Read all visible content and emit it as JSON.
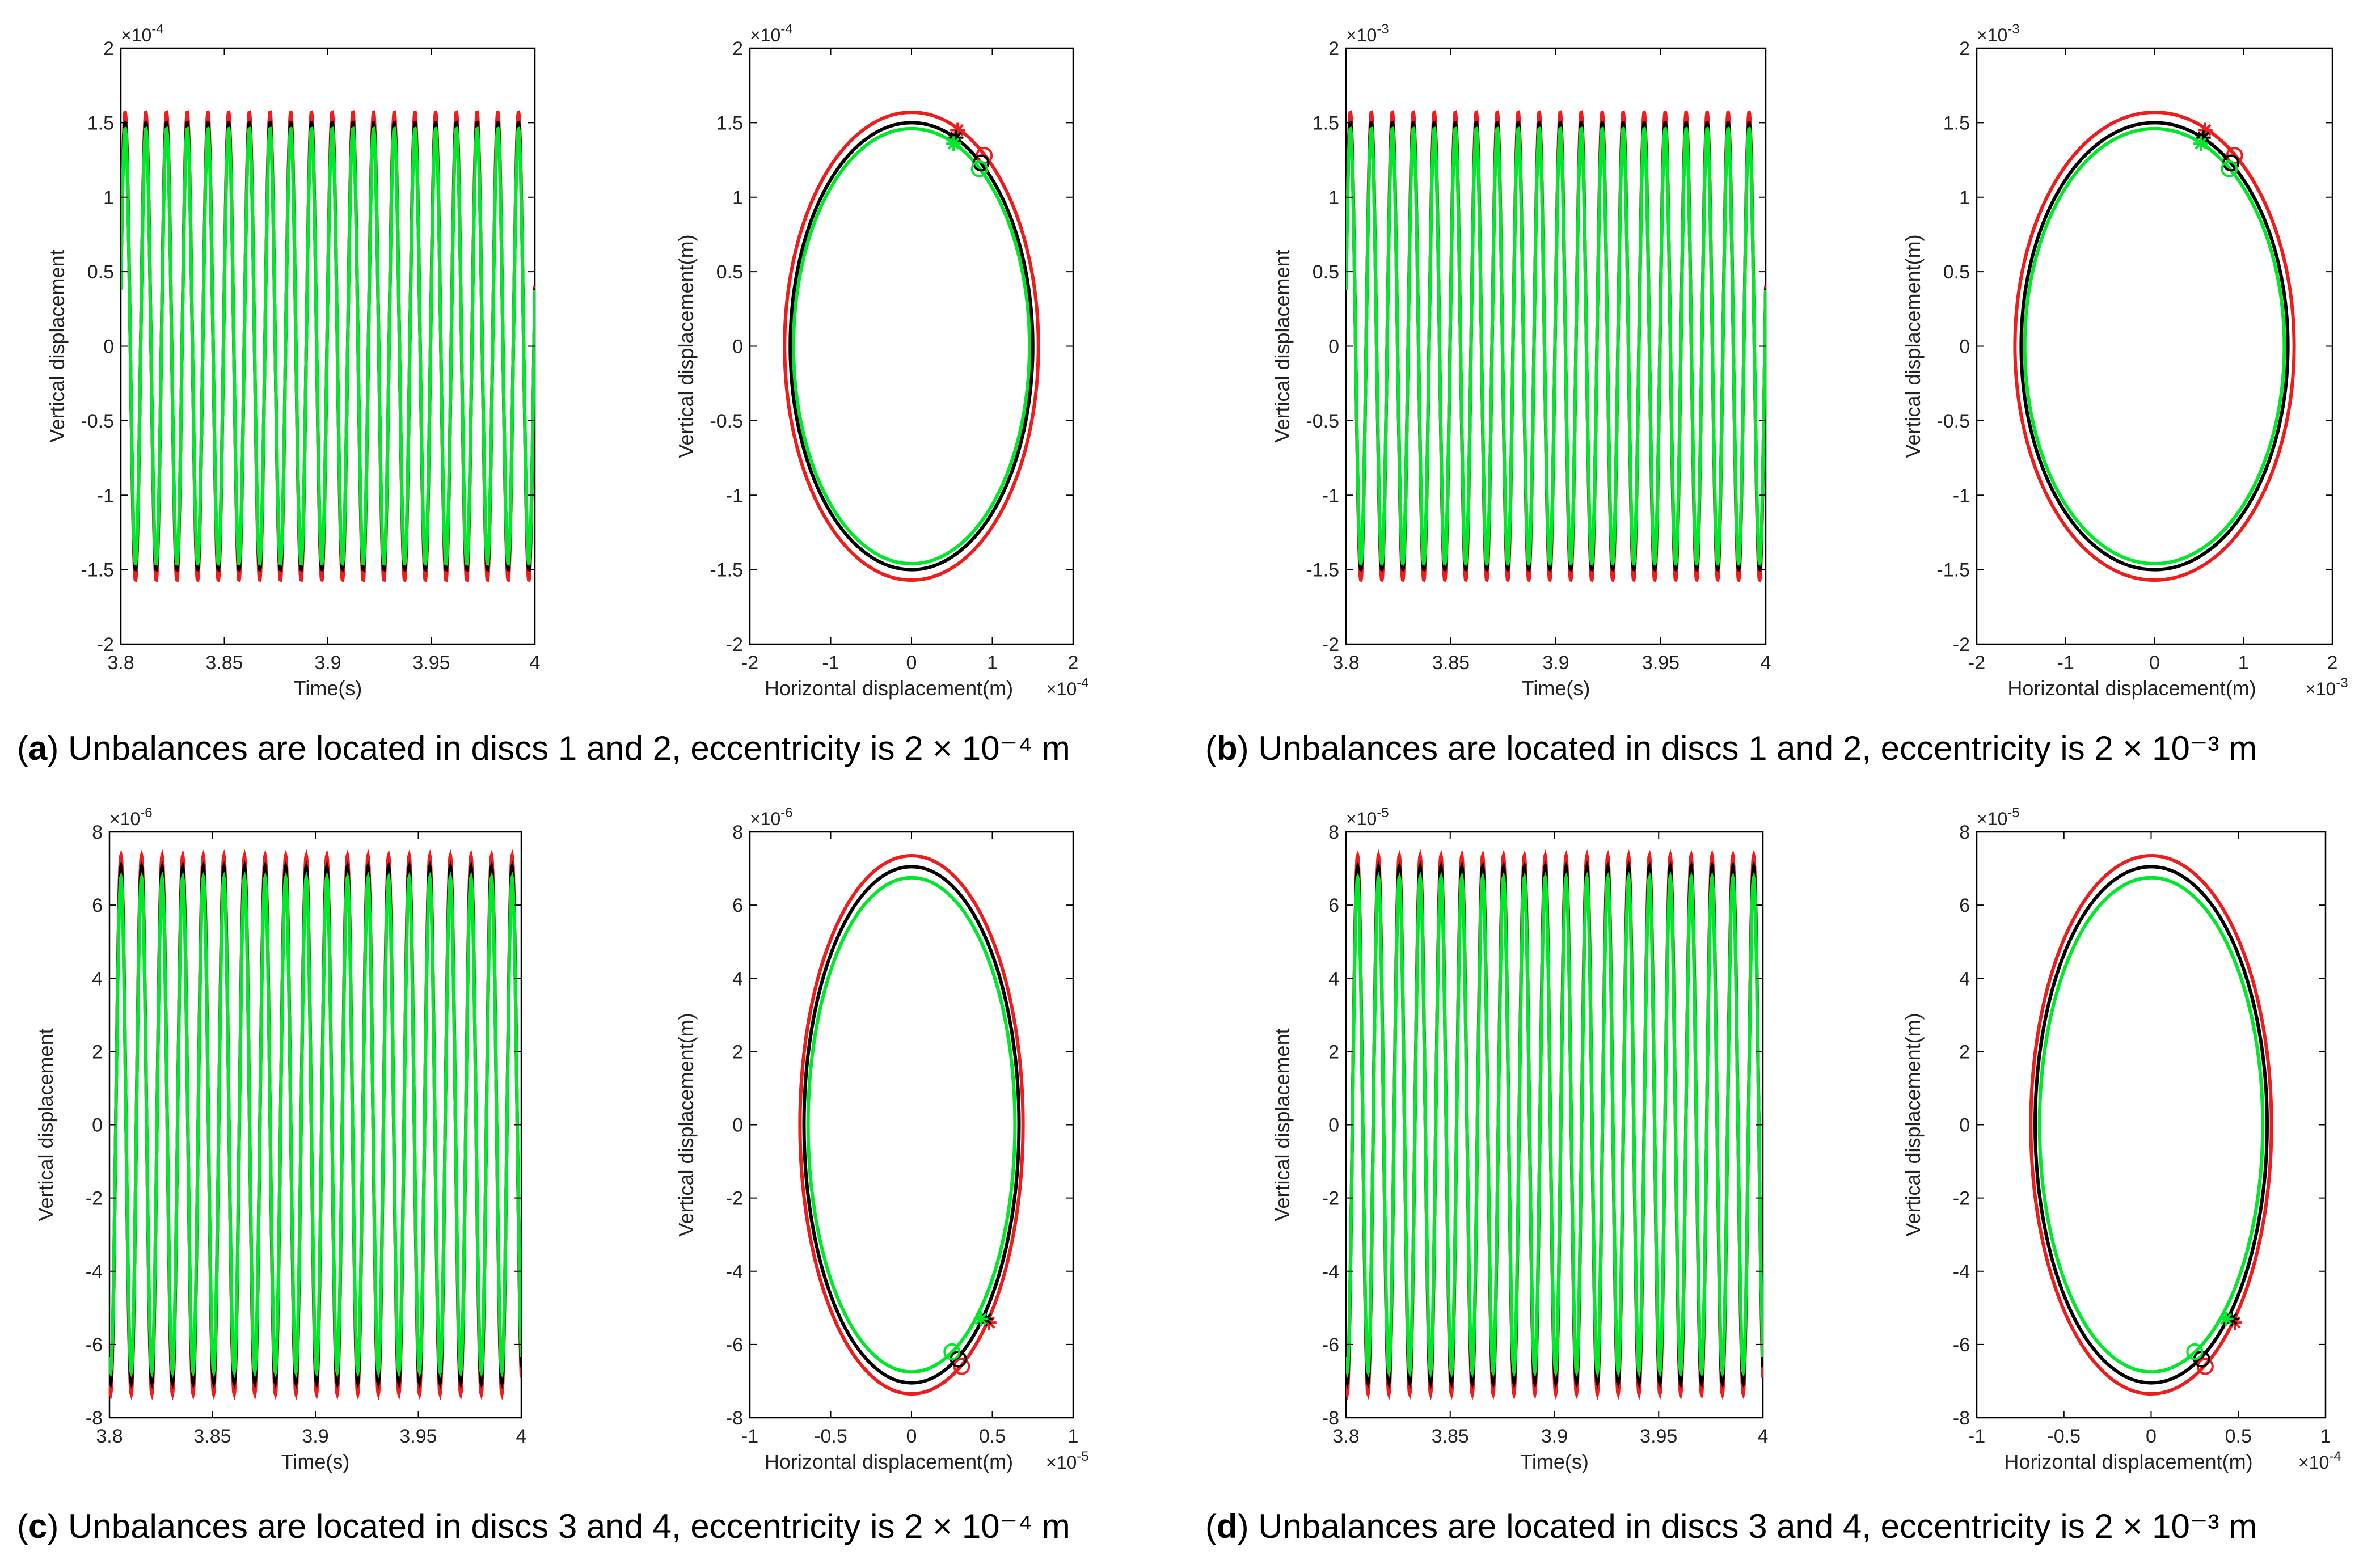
{
  "colors": {
    "red": "#ee1c1c",
    "black": "#000000",
    "green": "#00e82a",
    "axis": "#000000"
  },
  "captions": [
    {
      "open": "(",
      "letter": "a",
      "text": ") Unbalances are located in discs 1 and 2, eccentricity is 2 × 10⁻⁴ m"
    },
    {
      "open": "(",
      "letter": "b",
      "text": ") Unbalances are located in discs 1 and 2, eccentricity is 2 × 10⁻³ m"
    },
    {
      "open": "(",
      "letter": "c",
      "text": ") Unbalances are located in discs 3 and 4, eccentricity is 2 × 10⁻⁴ m"
    },
    {
      "open": "(",
      "letter": "d",
      "text": ") Unbalances are located in discs 3 and 4, eccentricity is 2 × 10⁻³ m"
    }
  ],
  "chart_data": [
    {
      "id": "a-time",
      "type": "line",
      "title": "",
      "xlabel": "Time(s)",
      "ylabel": "Vertical displacement",
      "xlim": [
        3.8,
        4.0
      ],
      "ylim": [
        -2,
        2
      ],
      "xticks": [
        3.8,
        3.85,
        3.9,
        3.95,
        4.0
      ],
      "xticklabels": [
        "3.8",
        "3.85",
        "3.9",
        "3.95",
        "4"
      ],
      "yticks": [
        -2,
        -1.5,
        -1,
        -0.5,
        0,
        0.5,
        1,
        1.5,
        2
      ],
      "yticklabels": [
        "-2",
        "-1.5",
        "-1",
        "-0.5",
        "0",
        "0.5",
        "1",
        "1.5",
        "2"
      ],
      "multiplier": "×10",
      "exponent": "-4",
      "wave": {
        "cycles": 20,
        "phase_deg": 15
      },
      "series": [
        {
          "name": "red",
          "amplitude": 1.57
        },
        {
          "name": "black",
          "amplitude": 1.5
        },
        {
          "name": "green",
          "amplitude": 1.46
        }
      ]
    },
    {
      "id": "a-orbit",
      "type": "line",
      "title": "",
      "xlabel": "Horizontal displacement(m)",
      "ylabel": "Vertical displacement(m)",
      "xlim": [
        -2,
        2
      ],
      "ylim": [
        -2,
        2
      ],
      "xticks": [
        -2,
        -1,
        0,
        1,
        2
      ],
      "xticklabels": [
        "-2",
        "-1",
        "0",
        "1",
        "2"
      ],
      "yticks": [
        -2,
        -1.5,
        -1,
        -0.5,
        0,
        0.5,
        1,
        1.5,
        2
      ],
      "yticklabels": [
        "-2",
        "-1.5",
        "-1",
        "-0.5",
        "0",
        "0.5",
        "1",
        "1.5",
        "2"
      ],
      "multiplier": "×10",
      "exponent": "-4",
      "xmultiplier": "×10",
      "xexponent": "-4",
      "orbits": [
        {
          "name": "red",
          "rx": 1.57,
          "ry": 1.57,
          "star": [
            0.57,
            1.45
          ],
          "circle": [
            0.9,
            1.28
          ]
        },
        {
          "name": "black",
          "rx": 1.5,
          "ry": 1.5,
          "star": [
            0.55,
            1.4
          ],
          "circle": [
            0.86,
            1.23
          ]
        },
        {
          "name": "green",
          "rx": 1.46,
          "ry": 1.46,
          "star": [
            0.52,
            1.36
          ],
          "circle": [
            0.84,
            1.19
          ]
        }
      ]
    },
    {
      "id": "b-time",
      "type": "line",
      "title": "",
      "xlabel": "Time(s)",
      "ylabel": "Vertical displacement",
      "xlim": [
        3.8,
        4.0
      ],
      "ylim": [
        -2,
        2
      ],
      "xticks": [
        3.8,
        3.85,
        3.9,
        3.95,
        4.0
      ],
      "xticklabels": [
        "3.8",
        "3.85",
        "3.9",
        "3.95",
        "4"
      ],
      "yticks": [
        -2,
        -1.5,
        -1,
        -0.5,
        0,
        0.5,
        1,
        1.5,
        2
      ],
      "yticklabels": [
        "-2",
        "-1.5",
        "-1",
        "-0.5",
        "0",
        "0.5",
        "1",
        "1.5",
        "2"
      ],
      "multiplier": "×10",
      "exponent": "-3",
      "wave": {
        "cycles": 20,
        "phase_deg": 15
      },
      "series": [
        {
          "name": "red",
          "amplitude": 1.57
        },
        {
          "name": "black",
          "amplitude": 1.5
        },
        {
          "name": "green",
          "amplitude": 1.46
        }
      ]
    },
    {
      "id": "b-orbit",
      "type": "line",
      "title": "",
      "xlabel": "Horizontal displacement(m)",
      "ylabel": "Vertical displacement(m)",
      "xlim": [
        -2,
        2
      ],
      "ylim": [
        -2,
        2
      ],
      "xticks": [
        -2,
        -1,
        0,
        1,
        2
      ],
      "xticklabels": [
        "-2",
        "-1",
        "0",
        "1",
        "2"
      ],
      "yticks": [
        -2,
        -1.5,
        -1,
        -0.5,
        0,
        0.5,
        1,
        1.5,
        2
      ],
      "yticklabels": [
        "-2",
        "-1.5",
        "-1",
        "-0.5",
        "0",
        "0.5",
        "1",
        "1.5",
        "2"
      ],
      "multiplier": "×10",
      "exponent": "-3",
      "xmultiplier": "×10",
      "xexponent": "-3",
      "orbits": [
        {
          "name": "red",
          "rx": 1.57,
          "ry": 1.57,
          "star": [
            0.57,
            1.45
          ],
          "circle": [
            0.9,
            1.28
          ]
        },
        {
          "name": "black",
          "rx": 1.5,
          "ry": 1.5,
          "star": [
            0.55,
            1.4
          ],
          "circle": [
            0.86,
            1.23
          ]
        },
        {
          "name": "green",
          "rx": 1.46,
          "ry": 1.46,
          "star": [
            0.52,
            1.36
          ],
          "circle": [
            0.84,
            1.19
          ]
        }
      ]
    },
    {
      "id": "c-time",
      "type": "line",
      "title": "",
      "xlabel": "Time(s)",
      "ylabel": "Vertical displacement",
      "xlim": [
        3.8,
        4.0
      ],
      "ylim": [
        -8,
        8
      ],
      "xticks": [
        3.8,
        3.85,
        3.9,
        3.95,
        4.0
      ],
      "xticklabels": [
        "3.8",
        "3.85",
        "3.9",
        "3.95",
        "4"
      ],
      "yticks": [
        -8,
        -6,
        -4,
        -2,
        0,
        2,
        4,
        6,
        8
      ],
      "yticklabels": [
        "-8",
        "-6",
        "-4",
        "-2",
        "0",
        "2",
        "4",
        "6",
        "8"
      ],
      "multiplier": "×10",
      "exponent": "-6",
      "wave": {
        "cycles": 20,
        "phase_deg": -110
      },
      "series": [
        {
          "name": "red",
          "amplitude": 7.35
        },
        {
          "name": "black",
          "amplitude": 7.05
        },
        {
          "name": "green",
          "amplitude": 6.75
        }
      ]
    },
    {
      "id": "c-orbit",
      "type": "line",
      "title": "",
      "xlabel": "Horizontal displacement(m)",
      "ylabel": "Vertical displacement(m)",
      "xlim": [
        -1,
        1
      ],
      "ylim": [
        -8,
        8
      ],
      "xticks": [
        -1,
        -0.5,
        0,
        0.5,
        1
      ],
      "xticklabels": [
        "-1",
        "-0.5",
        "0",
        "0.5",
        "1"
      ],
      "yticks": [
        -8,
        -6,
        -4,
        -2,
        0,
        2,
        4,
        6,
        8
      ],
      "yticklabels": [
        "-8",
        "-6",
        "-4",
        "-2",
        "0",
        "2",
        "4",
        "6",
        "8"
      ],
      "multiplier": "×10",
      "exponent": "-6",
      "xmultiplier": "×10",
      "xexponent": "-5",
      "orbits": [
        {
          "name": "red",
          "rx": 0.69,
          "ry": 7.35,
          "star": [
            0.48,
            -5.4
          ],
          "circle": [
            0.31,
            -6.6
          ]
        },
        {
          "name": "black",
          "rx": 0.665,
          "ry": 7.05,
          "star": [
            0.46,
            -5.3
          ],
          "circle": [
            0.29,
            -6.4
          ]
        },
        {
          "name": "green",
          "rx": 0.64,
          "ry": 6.75,
          "star": [
            0.43,
            -5.3
          ],
          "circle": [
            0.25,
            -6.2
          ]
        }
      ]
    },
    {
      "id": "d-time",
      "type": "line",
      "title": "",
      "xlabel": "Time(s)",
      "ylabel": "Vertical displacement",
      "xlim": [
        3.8,
        4.0
      ],
      "ylim": [
        -8,
        8
      ],
      "xticks": [
        3.8,
        3.85,
        3.9,
        3.95,
        4.0
      ],
      "xticklabels": [
        "3.8",
        "3.85",
        "3.9",
        "3.95",
        "4"
      ],
      "yticks": [
        -8,
        -6,
        -4,
        -2,
        0,
        2,
        4,
        6,
        8
      ],
      "yticklabels": [
        "-8",
        "-6",
        "-4",
        "-2",
        "0",
        "2",
        "4",
        "6",
        "8"
      ],
      "multiplier": "×10",
      "exponent": "-5",
      "wave": {
        "cycles": 20,
        "phase_deg": -110
      },
      "series": [
        {
          "name": "red",
          "amplitude": 7.35
        },
        {
          "name": "black",
          "amplitude": 7.05
        },
        {
          "name": "green",
          "amplitude": 6.75
        }
      ]
    },
    {
      "id": "d-orbit",
      "type": "line",
      "title": "",
      "xlabel": "Horizontal displacement(m)",
      "ylabel": "Vertical displacement(m)",
      "xlim": [
        -1,
        1
      ],
      "ylim": [
        -8,
        8
      ],
      "xticks": [
        -1,
        -0.5,
        0,
        0.5,
        1
      ],
      "xticklabels": [
        "-1",
        "-0.5",
        "0",
        "0.5",
        "1"
      ],
      "yticks": [
        -8,
        -6,
        -4,
        -2,
        0,
        2,
        4,
        6,
        8
      ],
      "yticklabels": [
        "-8",
        "-6",
        "-4",
        "-2",
        "0",
        "2",
        "4",
        "6",
        "8"
      ],
      "multiplier": "×10",
      "exponent": "-5",
      "xmultiplier": "×10",
      "xexponent": "-4",
      "orbits": [
        {
          "name": "red",
          "rx": 0.69,
          "ry": 7.35,
          "star": [
            0.48,
            -5.4
          ],
          "circle": [
            0.31,
            -6.6
          ]
        },
        {
          "name": "black",
          "rx": 0.665,
          "ry": 7.05,
          "star": [
            0.46,
            -5.3
          ],
          "circle": [
            0.29,
            -6.4
          ]
        },
        {
          "name": "green",
          "rx": 0.64,
          "ry": 6.75,
          "star": [
            0.43,
            -5.3
          ],
          "circle": [
            0.25,
            -6.2
          ]
        }
      ]
    }
  ]
}
